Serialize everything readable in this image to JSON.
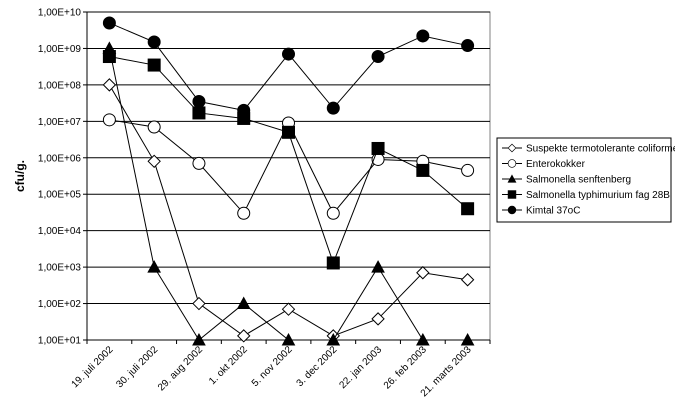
{
  "chart_data": {
    "type": "line",
    "title": "",
    "xlabel": "",
    "ylabel": "cfu/g.",
    "yscale": "log",
    "ylim": [
      10,
      10000000000
    ],
    "grid": "horizontal",
    "legend_position": "right",
    "y_tick_labels": [
      "1,00E+01",
      "1,00E+02",
      "1,00E+03",
      "1,00E+04",
      "1,00E+05",
      "1,00E+06",
      "1,00E+07",
      "1,00E+08",
      "1,00E+09",
      "1,00E+10"
    ],
    "categories": [
      "19. juli 2002",
      "30. juli 2002",
      "29. aug 2002",
      "1. okt 2002",
      "5. nov 2002",
      "3. dec 2002",
      "22. jan 2003",
      "26. feb 2003",
      "21. marts 2003"
    ],
    "series": [
      {
        "name": "Suspekte termotolerante coliforme",
        "marker": "diamond-open",
        "color": "#000000",
        "values": [
          100000000,
          800000,
          100,
          13,
          70,
          13,
          38,
          700,
          450
        ]
      },
      {
        "name": "Enterokokker",
        "marker": "circle-open",
        "color": "#000000",
        "values": [
          11000000,
          7000000,
          700000,
          30000,
          9000000,
          30000,
          900000,
          800000,
          450000
        ]
      },
      {
        "name": "Salmonella senftenberg",
        "marker": "triangle-filled",
        "color": "#000000",
        "values": [
          1000000000,
          1000,
          10,
          100,
          10,
          10,
          1000,
          10,
          10
        ]
      },
      {
        "name": "Salmonella typhimurium fag 28B",
        "marker": "square-filled",
        "color": "#000000",
        "values": [
          600000000,
          350000000,
          17000000,
          12000000,
          5000000,
          1300,
          1800000,
          450000,
          40000
        ]
      },
      {
        "name": "Kimtal 37oC",
        "marker": "circle-filled",
        "color": "#000000",
        "values": [
          5000000000,
          1500000000,
          35000000,
          20000000,
          700000000,
          23000000,
          600000000,
          2200000000,
          1200000000
        ]
      }
    ]
  }
}
